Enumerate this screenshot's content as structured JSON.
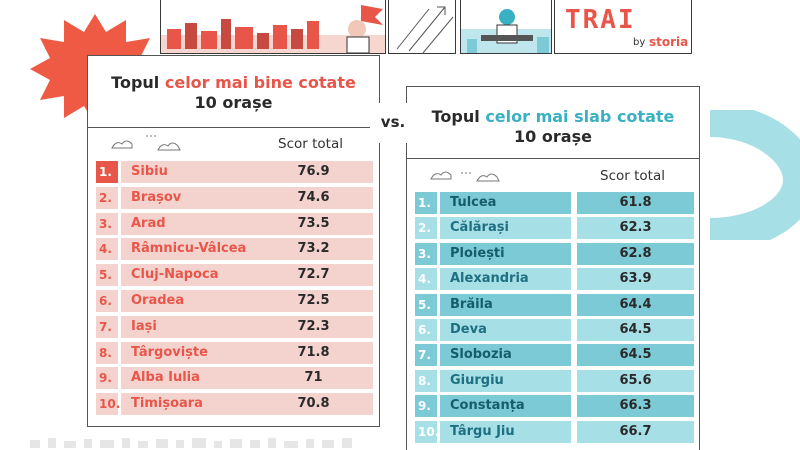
{
  "brand": {
    "logo_text": "TRAI",
    "by": "by",
    "company": "storia"
  },
  "versus": "vs.",
  "best": {
    "title_prefix": "Topul ",
    "title_accent": "celor mai bine cotate",
    "subtitle": "10 orașe",
    "score_header": "Scor total",
    "rows": [
      {
        "rank": "1.",
        "city": "Sibiu",
        "score": "76.9"
      },
      {
        "rank": "2.",
        "city": "Brașov",
        "score": "74.6"
      },
      {
        "rank": "3.",
        "city": "Arad",
        "score": "73.5"
      },
      {
        "rank": "4.",
        "city": "Râmnicu-Vâlcea",
        "score": "73.2"
      },
      {
        "rank": "5.",
        "city": "Cluj-Napoca",
        "score": "72.7"
      },
      {
        "rank": "6.",
        "city": "Oradea",
        "score": "72.5"
      },
      {
        "rank": "7.",
        "city": "Iași",
        "score": "72.3"
      },
      {
        "rank": "8.",
        "city": "Târgoviște",
        "score": "71.8"
      },
      {
        "rank": "9.",
        "city": "Alba Iulia",
        "score": "71"
      },
      {
        "rank": "10.",
        "city": "Timișoara",
        "score": "70.8"
      }
    ]
  },
  "worst": {
    "title_prefix": "Topul ",
    "title_accent": "celor mai slab cotate",
    "subtitle": "10 orașe",
    "score_header": "Scor total",
    "rows": [
      {
        "rank": "1.",
        "city": "Tulcea",
        "score": "61.8"
      },
      {
        "rank": "2.",
        "city": "Călărași",
        "score": "62.3"
      },
      {
        "rank": "3.",
        "city": "Ploiești",
        "score": "62.8"
      },
      {
        "rank": "4.",
        "city": "Alexandria",
        "score": "63.9"
      },
      {
        "rank": "5.",
        "city": "Brăila",
        "score": "64.4"
      },
      {
        "rank": "6.",
        "city": "Deva",
        "score": "64.5"
      },
      {
        "rank": "7.",
        "city": "Slobozia",
        "score": "64.5"
      },
      {
        "rank": "8.",
        "city": "Giurgiu",
        "score": "65.6"
      },
      {
        "rank": "9.",
        "city": "Constanța",
        "score": "66.3"
      },
      {
        "rank": "10.",
        "city": "Târgu Jiu",
        "score": "66.7"
      }
    ]
  },
  "colors": {
    "red_accent": "#e8564a",
    "red_light": "#f4d3cf",
    "teal_accent": "#3ab0c3",
    "teal_light": "#a7dfe7",
    "teal_dark": "#7ccad6"
  }
}
